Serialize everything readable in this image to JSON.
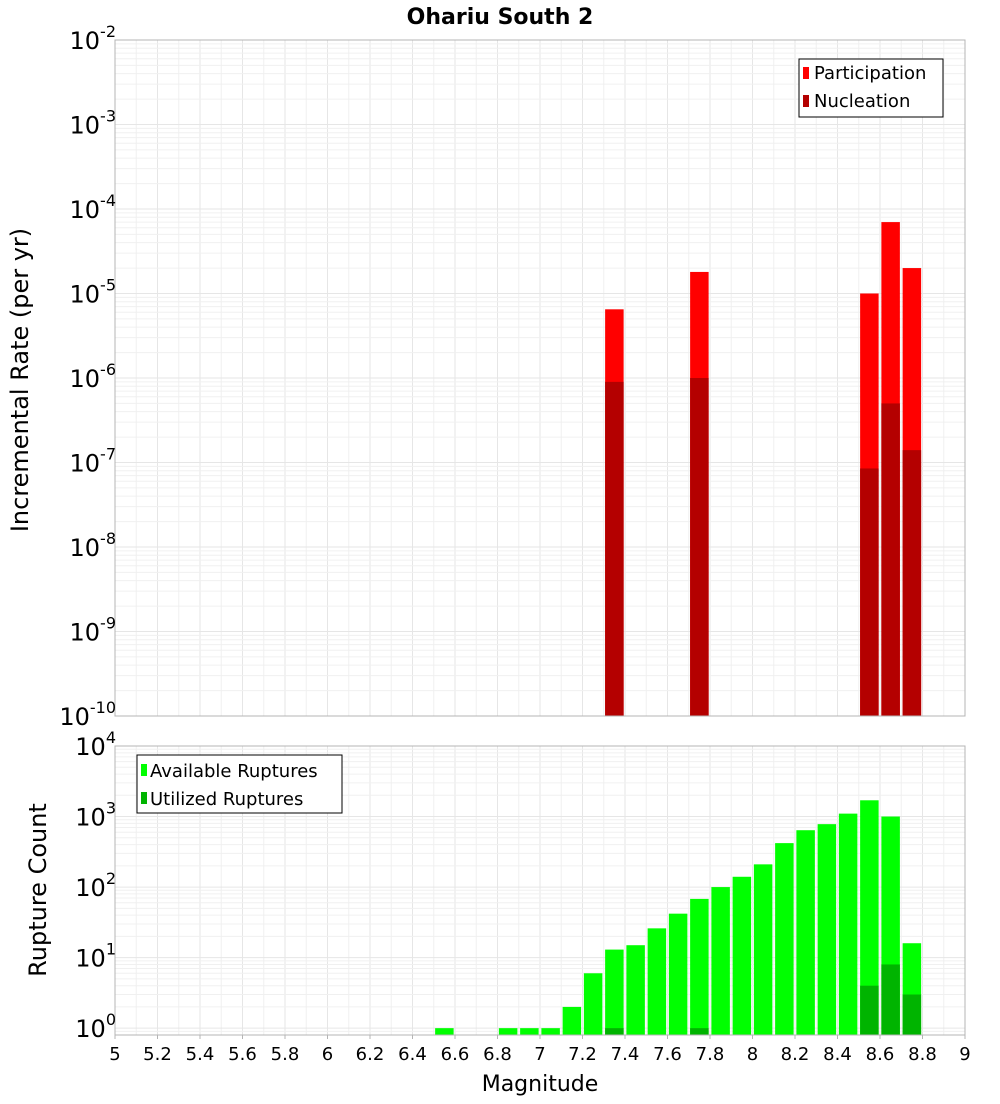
{
  "chart_data": [
    {
      "type": "bar",
      "title": "Ohariu South 2",
      "xlabel": "",
      "ylabel": "Incremental Rate (per yr)",
      "yscale": "log",
      "ylim": [
        1e-10,
        0.01
      ],
      "xlim": [
        5,
        9
      ],
      "y_ticks": [
        {
          "base": "10",
          "exp": "-10"
        },
        {
          "base": "10",
          "exp": "-9"
        },
        {
          "base": "10",
          "exp": "-8"
        },
        {
          "base": "10",
          "exp": "-7"
        },
        {
          "base": "10",
          "exp": "-6"
        },
        {
          "base": "10",
          "exp": "-5"
        },
        {
          "base": "10",
          "exp": "-4"
        },
        {
          "base": "10",
          "exp": "-3"
        },
        {
          "base": "10",
          "exp": "-2"
        }
      ],
      "legend": {
        "position": "top-right",
        "entries": [
          "Participation",
          "Nucleation"
        ]
      },
      "series": [
        {
          "name": "Participation",
          "color": "#ff0000",
          "x": [
            7.35,
            7.75,
            8.55,
            8.65,
            8.75
          ],
          "values": [
            6.5e-06,
            1.8e-05,
            1e-05,
            7e-05,
            2e-05
          ]
        },
        {
          "name": "Nucleation",
          "color": "#b40000",
          "x": [
            7.35,
            7.75,
            8.55,
            8.65,
            8.75
          ],
          "values": [
            9e-07,
            1e-06,
            8.5e-08,
            5e-07,
            1.4e-07
          ]
        }
      ]
    },
    {
      "type": "bar",
      "title": "",
      "xlabel": "Magnitude",
      "ylabel": "Rupture Count",
      "yscale": "log",
      "ylim": [
        0.8,
        10000.0
      ],
      "xlim": [
        5,
        9
      ],
      "x_ticks": [
        "5",
        "5.2",
        "5.4",
        "5.6",
        "5.8",
        "6",
        "6.2",
        "6.4",
        "6.6",
        "6.8",
        "7",
        "7.2",
        "7.4",
        "7.6",
        "7.8",
        "8",
        "8.2",
        "8.4",
        "8.6",
        "8.8",
        "9"
      ],
      "y_ticks": [
        {
          "base": "10",
          "exp": "0"
        },
        {
          "base": "10",
          "exp": "1"
        },
        {
          "base": "10",
          "exp": "2"
        },
        {
          "base": "10",
          "exp": "3"
        },
        {
          "base": "10",
          "exp": "4"
        }
      ],
      "legend": {
        "position": "top-left",
        "entries": [
          "Available Ruptures",
          "Utilized Ruptures"
        ]
      },
      "series": [
        {
          "name": "Available Ruptures",
          "color": "#00ff00",
          "x": [
            6.55,
            6.85,
            6.95,
            7.05,
            7.15,
            7.25,
            7.35,
            7.45,
            7.55,
            7.65,
            7.75,
            7.85,
            7.95,
            8.05,
            8.15,
            8.25,
            8.35,
            8.45,
            8.55,
            8.65,
            8.75
          ],
          "values": [
            1,
            1,
            1,
            1,
            2,
            6,
            13,
            15,
            26,
            42,
            68,
            100,
            140,
            210,
            420,
            640,
            780,
            1100,
            1700,
            1000,
            16
          ]
        },
        {
          "name": "Utilized Ruptures",
          "color": "#00b400",
          "x": [
            7.35,
            7.75,
            8.55,
            8.65,
            8.75
          ],
          "values": [
            1,
            1,
            4,
            8,
            3
          ]
        }
      ]
    }
  ]
}
